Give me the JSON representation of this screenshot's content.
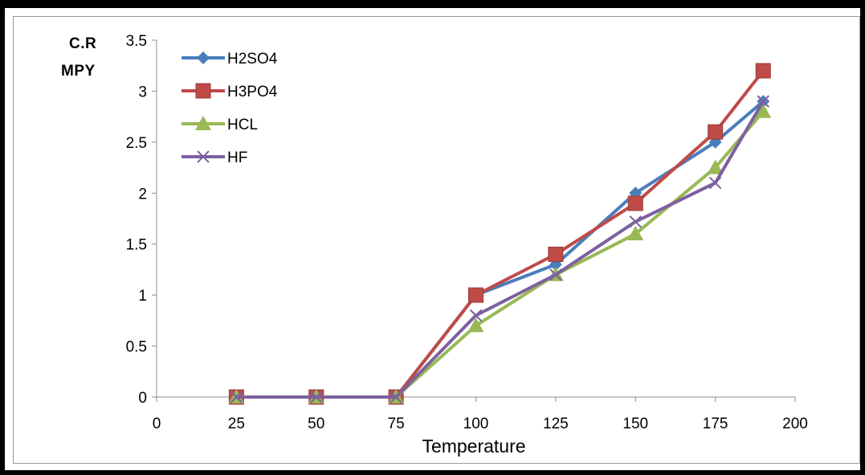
{
  "chart_data": {
    "type": "line",
    "title": "",
    "xlabel": "Temperature",
    "ylabel": [
      "C.R",
      "MPY"
    ],
    "x_ticks": [
      "0",
      "25",
      "50",
      "75",
      "100",
      "125",
      "150",
      "175",
      "200"
    ],
    "y_ticks": [
      "0",
      "0.5",
      "1",
      "1.5",
      "2",
      "2.5",
      "3",
      "3.5"
    ],
    "xlim": [
      0,
      200
    ],
    "ylim": [
      0,
      3.5
    ],
    "grid": false,
    "legend_position": "top-left",
    "x": [
      25,
      50,
      75,
      100,
      125,
      150,
      175,
      190
    ],
    "series": [
      {
        "name": "H2SO4",
        "color": "#4a7ebb",
        "marker": "diamond",
        "values": [
          0,
          0,
          0,
          1.0,
          1.3,
          2.0,
          2.5,
          2.9
        ]
      },
      {
        "name": "H3PO4",
        "color": "#be4b48",
        "marker": "square",
        "values": [
          0,
          0,
          0,
          1.0,
          1.4,
          1.9,
          2.6,
          3.2
        ]
      },
      {
        "name": "HCL",
        "color": "#98b954",
        "marker": "triangle",
        "values": [
          0,
          0,
          0,
          0.7,
          1.2,
          1.6,
          2.25,
          2.8
        ]
      },
      {
        "name": "HF",
        "color": "#7d60a0",
        "marker": "x",
        "values": [
          0,
          0,
          0,
          0.8,
          1.2,
          1.72,
          2.1,
          2.9
        ]
      }
    ]
  }
}
